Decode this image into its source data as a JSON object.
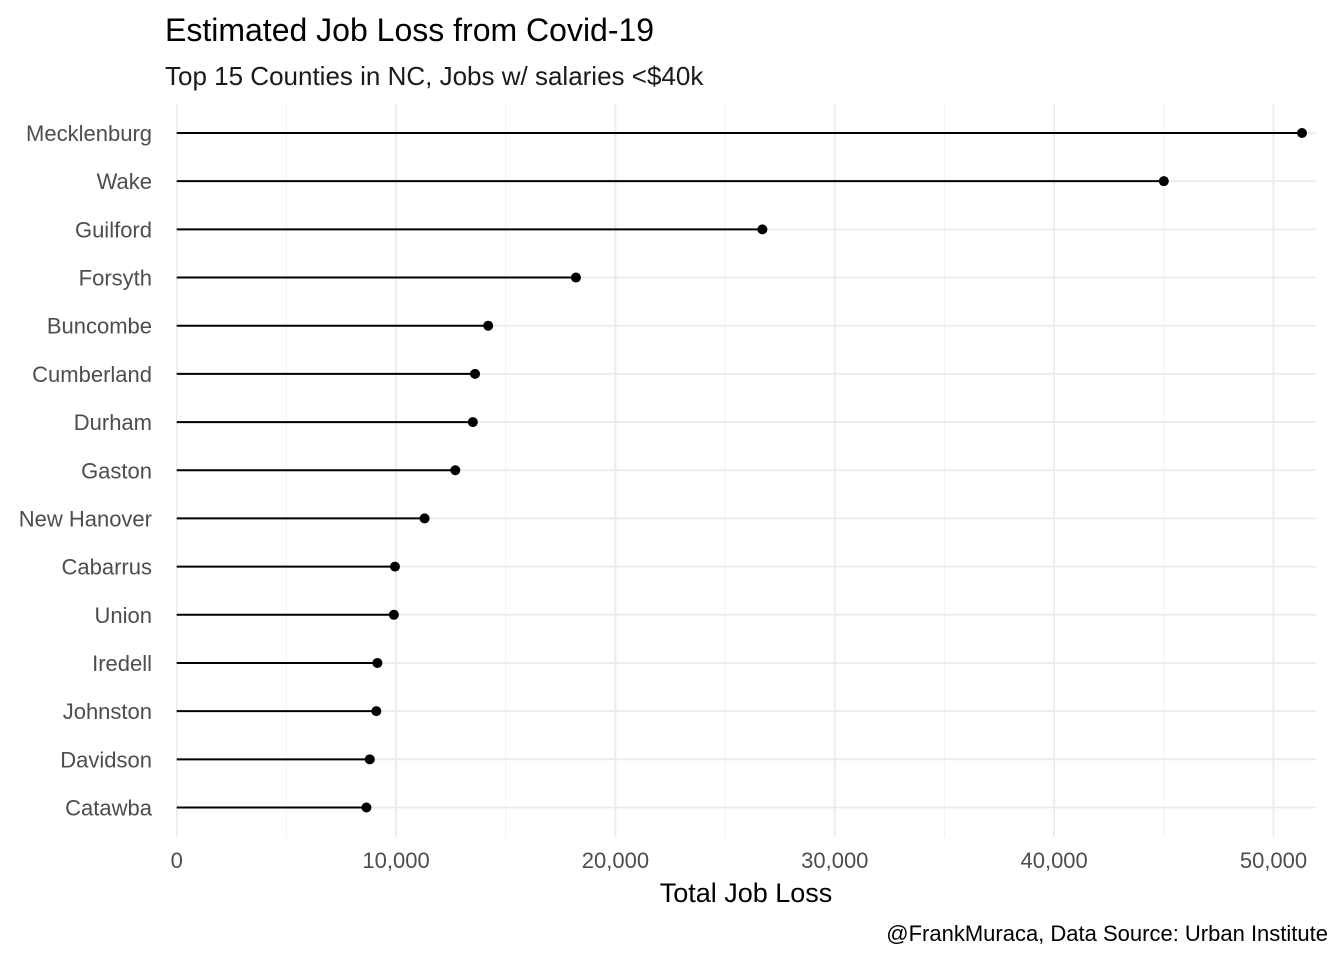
{
  "chart_data": {
    "type": "lollipop",
    "title": "Estimated Job Loss from Covid-19",
    "subtitle": "Top 15 Counties in NC, Jobs w/ salaries <$40k",
    "xlabel": "Total Job Loss",
    "ylabel": "",
    "caption": "@FrankMuraca, Data Source: Urban Institute",
    "xlim": [
      0,
      52000
    ],
    "x_ticks": [
      0,
      10000,
      20000,
      30000,
      40000,
      50000
    ],
    "x_tick_labels": [
      "0",
      "10,000",
      "20,000",
      "30,000",
      "40,000",
      "50,000"
    ],
    "grid": true,
    "legend": "none",
    "categories": [
      "Mecklenburg",
      "Wake",
      "Guilford",
      "Forsyth",
      "Buncombe",
      "Cumberland",
      "Durham",
      "Gaston",
      "New Hanover",
      "Cabarrus",
      "Union",
      "Iredell",
      "Johnston",
      "Davidson",
      "Catawba"
    ],
    "values": [
      51300,
      45000,
      26700,
      18200,
      14200,
      13600,
      13500,
      12700,
      11300,
      9950,
      9900,
      9150,
      9100,
      8800,
      8650
    ],
    "color": "#000000"
  }
}
